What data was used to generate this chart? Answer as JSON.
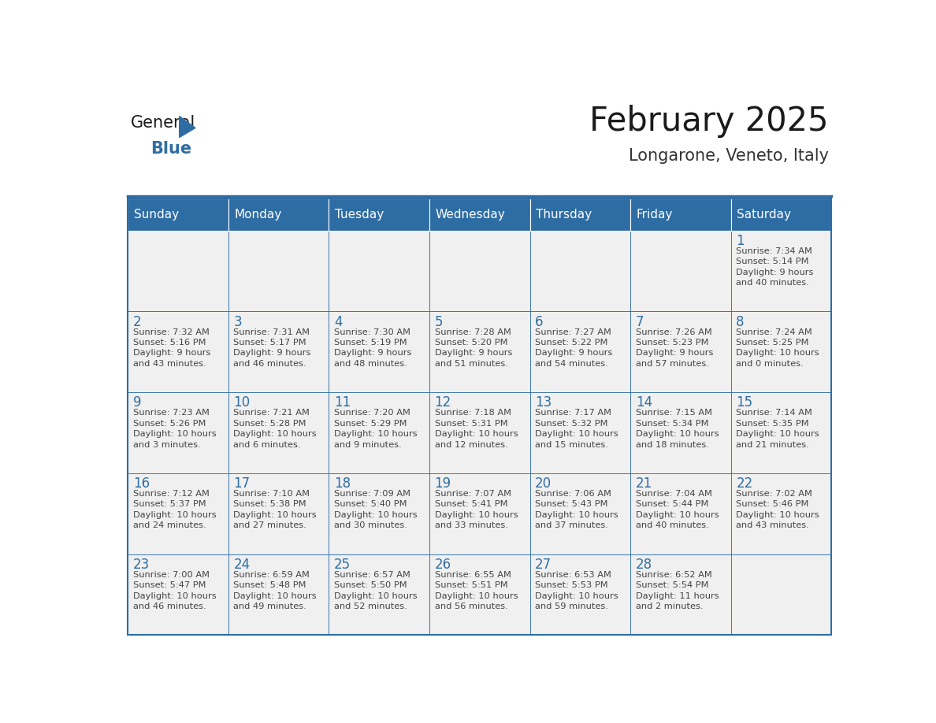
{
  "title": "February 2025",
  "subtitle": "Longarone, Veneto, Italy",
  "header_bg": "#2E6DA4",
  "header_text_color": "#FFFFFF",
  "cell_bg_light": "#F0F0F0",
  "border_color": "#2E6DA4",
  "text_color": "#444444",
  "day_number_color": "#2E6DA4",
  "days_of_week": [
    "Sunday",
    "Monday",
    "Tuesday",
    "Wednesday",
    "Thursday",
    "Friday",
    "Saturday"
  ],
  "calendar_data": [
    [
      {
        "day": null,
        "info": null
      },
      {
        "day": null,
        "info": null
      },
      {
        "day": null,
        "info": null
      },
      {
        "day": null,
        "info": null
      },
      {
        "day": null,
        "info": null
      },
      {
        "day": null,
        "info": null
      },
      {
        "day": 1,
        "info": "Sunrise: 7:34 AM\nSunset: 5:14 PM\nDaylight: 9 hours\nand 40 minutes."
      }
    ],
    [
      {
        "day": 2,
        "info": "Sunrise: 7:32 AM\nSunset: 5:16 PM\nDaylight: 9 hours\nand 43 minutes."
      },
      {
        "day": 3,
        "info": "Sunrise: 7:31 AM\nSunset: 5:17 PM\nDaylight: 9 hours\nand 46 minutes."
      },
      {
        "day": 4,
        "info": "Sunrise: 7:30 AM\nSunset: 5:19 PM\nDaylight: 9 hours\nand 48 minutes."
      },
      {
        "day": 5,
        "info": "Sunrise: 7:28 AM\nSunset: 5:20 PM\nDaylight: 9 hours\nand 51 minutes."
      },
      {
        "day": 6,
        "info": "Sunrise: 7:27 AM\nSunset: 5:22 PM\nDaylight: 9 hours\nand 54 minutes."
      },
      {
        "day": 7,
        "info": "Sunrise: 7:26 AM\nSunset: 5:23 PM\nDaylight: 9 hours\nand 57 minutes."
      },
      {
        "day": 8,
        "info": "Sunrise: 7:24 AM\nSunset: 5:25 PM\nDaylight: 10 hours\nand 0 minutes."
      }
    ],
    [
      {
        "day": 9,
        "info": "Sunrise: 7:23 AM\nSunset: 5:26 PM\nDaylight: 10 hours\nand 3 minutes."
      },
      {
        "day": 10,
        "info": "Sunrise: 7:21 AM\nSunset: 5:28 PM\nDaylight: 10 hours\nand 6 minutes."
      },
      {
        "day": 11,
        "info": "Sunrise: 7:20 AM\nSunset: 5:29 PM\nDaylight: 10 hours\nand 9 minutes."
      },
      {
        "day": 12,
        "info": "Sunrise: 7:18 AM\nSunset: 5:31 PM\nDaylight: 10 hours\nand 12 minutes."
      },
      {
        "day": 13,
        "info": "Sunrise: 7:17 AM\nSunset: 5:32 PM\nDaylight: 10 hours\nand 15 minutes."
      },
      {
        "day": 14,
        "info": "Sunrise: 7:15 AM\nSunset: 5:34 PM\nDaylight: 10 hours\nand 18 minutes."
      },
      {
        "day": 15,
        "info": "Sunrise: 7:14 AM\nSunset: 5:35 PM\nDaylight: 10 hours\nand 21 minutes."
      }
    ],
    [
      {
        "day": 16,
        "info": "Sunrise: 7:12 AM\nSunset: 5:37 PM\nDaylight: 10 hours\nand 24 minutes."
      },
      {
        "day": 17,
        "info": "Sunrise: 7:10 AM\nSunset: 5:38 PM\nDaylight: 10 hours\nand 27 minutes."
      },
      {
        "day": 18,
        "info": "Sunrise: 7:09 AM\nSunset: 5:40 PM\nDaylight: 10 hours\nand 30 minutes."
      },
      {
        "day": 19,
        "info": "Sunrise: 7:07 AM\nSunset: 5:41 PM\nDaylight: 10 hours\nand 33 minutes."
      },
      {
        "day": 20,
        "info": "Sunrise: 7:06 AM\nSunset: 5:43 PM\nDaylight: 10 hours\nand 37 minutes."
      },
      {
        "day": 21,
        "info": "Sunrise: 7:04 AM\nSunset: 5:44 PM\nDaylight: 10 hours\nand 40 minutes."
      },
      {
        "day": 22,
        "info": "Sunrise: 7:02 AM\nSunset: 5:46 PM\nDaylight: 10 hours\nand 43 minutes."
      }
    ],
    [
      {
        "day": 23,
        "info": "Sunrise: 7:00 AM\nSunset: 5:47 PM\nDaylight: 10 hours\nand 46 minutes."
      },
      {
        "day": 24,
        "info": "Sunrise: 6:59 AM\nSunset: 5:48 PM\nDaylight: 10 hours\nand 49 minutes."
      },
      {
        "day": 25,
        "info": "Sunrise: 6:57 AM\nSunset: 5:50 PM\nDaylight: 10 hours\nand 52 minutes."
      },
      {
        "day": 26,
        "info": "Sunrise: 6:55 AM\nSunset: 5:51 PM\nDaylight: 10 hours\nand 56 minutes."
      },
      {
        "day": 27,
        "info": "Sunrise: 6:53 AM\nSunset: 5:53 PM\nDaylight: 10 hours\nand 59 minutes."
      },
      {
        "day": 28,
        "info": "Sunrise: 6:52 AM\nSunset: 5:54 PM\nDaylight: 11 hours\nand 2 minutes."
      },
      {
        "day": null,
        "info": null
      }
    ]
  ]
}
